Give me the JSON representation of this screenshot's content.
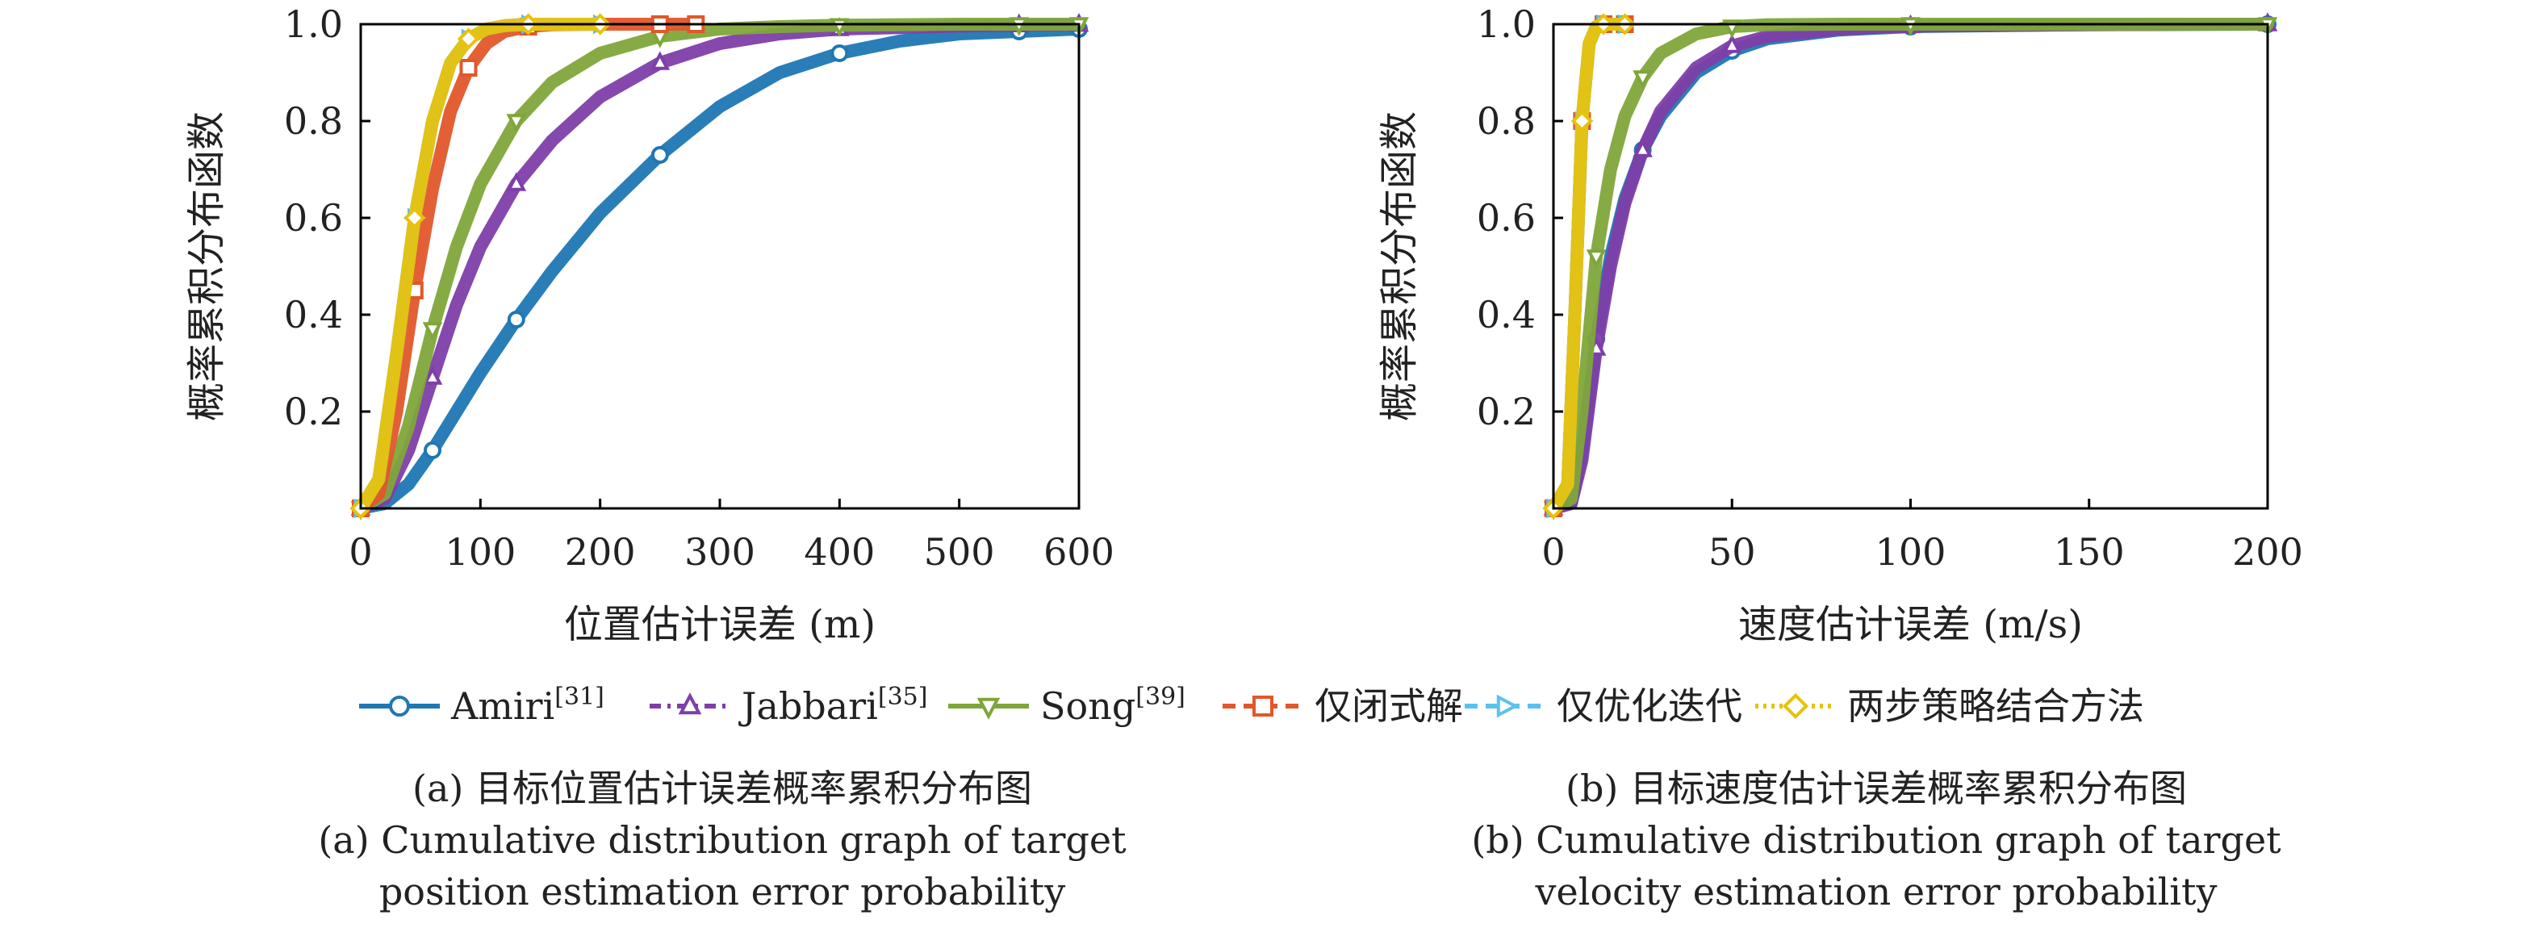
{
  "legend": [
    {
      "name": "Amiri",
      "ref": "[31]",
      "color": "#1f77b4",
      "marker": "circle",
      "dash": ""
    },
    {
      "name": "Jabbari",
      "ref": "[35]",
      "color": "#7e3ea8",
      "marker": "triangle-up",
      "dash": "14,8,4,8"
    },
    {
      "name": "Song",
      "ref": "[39]",
      "color": "#7fa63a",
      "marker": "triangle-down",
      "dash": ""
    },
    {
      "name": "仅闭式解",
      "ref": "",
      "color": "#e2572b",
      "marker": "square",
      "dash": "16,10"
    },
    {
      "name": "仅优化迭代",
      "ref": "",
      "color": "#5bc2ee",
      "marker": "triangle-right",
      "dash": "16,10"
    },
    {
      "name": "两步策略结合方法",
      "ref": "",
      "color": "#e8c20a",
      "marker": "diamond",
      "dash": "4,6"
    }
  ],
  "captions": [
    {
      "zh": "(a) 目标位置估计误差概率累积分布图",
      "en1": "(a) Cumulative distribution graph of target",
      "en2": "position estimation error probability"
    },
    {
      "zh": "(b) 目标速度估计误差概率累积分布图",
      "en1": "(b) Cumulative distribution graph of target",
      "en2": "velocity estimation error probability"
    }
  ],
  "chart_data": [
    {
      "type": "line",
      "xlabel": "位置估计误差 (m)",
      "ylabel": "概率累积分布函数",
      "xlim": [
        0,
        600
      ],
      "ylim": [
        0,
        1.0
      ],
      "xticks": [
        0,
        100,
        200,
        300,
        400,
        500,
        600
      ],
      "yticks": [
        0.2,
        0.4,
        0.6,
        0.8,
        1.0
      ],
      "ytick_labels": [
        "0.2",
        "0.4",
        "0.6",
        "0.8",
        "1.0"
      ],
      "series": [
        {
          "name": "Amiri",
          "x": [
            0,
            20,
            40,
            60,
            80,
            100,
            130,
            160,
            200,
            250,
            300,
            350,
            400,
            450,
            500,
            550,
            600
          ],
          "y": [
            0,
            0.01,
            0.05,
            0.12,
            0.2,
            0.28,
            0.39,
            0.49,
            0.61,
            0.73,
            0.83,
            0.9,
            0.94,
            0.965,
            0.98,
            0.985,
            0.99
          ]
        },
        {
          "name": "Jabbari",
          "x": [
            0,
            20,
            40,
            60,
            80,
            100,
            130,
            160,
            200,
            250,
            300,
            350,
            400,
            450,
            500,
            550,
            600
          ],
          "y": [
            0,
            0.02,
            0.12,
            0.27,
            0.42,
            0.54,
            0.67,
            0.76,
            0.85,
            0.92,
            0.96,
            0.98,
            0.99,
            0.993,
            0.996,
            0.998,
            0.999
          ]
        },
        {
          "name": "Song",
          "x": [
            0,
            20,
            40,
            60,
            80,
            100,
            130,
            160,
            200,
            250,
            300,
            350,
            400,
            450,
            500,
            550,
            600
          ],
          "y": [
            0,
            0.03,
            0.17,
            0.37,
            0.54,
            0.67,
            0.8,
            0.88,
            0.94,
            0.975,
            0.99,
            0.995,
            0.998,
            0.999,
            1.0,
            1.0,
            1.0
          ]
        },
        {
          "name": "仅闭式解",
          "x": [
            0,
            15,
            30,
            45,
            60,
            75,
            90,
            105,
            120,
            140,
            160,
            200,
            250,
            280
          ],
          "y": [
            0,
            0.03,
            0.2,
            0.45,
            0.66,
            0.82,
            0.91,
            0.96,
            0.985,
            0.995,
            0.999,
            1.0,
            1.0,
            1.0
          ]
        },
        {
          "name": "仅优化迭代",
          "x": [
            0,
            15,
            30,
            45,
            60,
            75,
            90,
            105,
            120,
            140,
            160,
            200
          ],
          "y": [
            0,
            0.06,
            0.32,
            0.6,
            0.8,
            0.92,
            0.97,
            0.99,
            0.997,
            1.0,
            1.0,
            1.0
          ]
        },
        {
          "name": "两步策略结合方法",
          "x": [
            0,
            15,
            30,
            45,
            60,
            75,
            90,
            105,
            120,
            140,
            160,
            200
          ],
          "y": [
            0,
            0.06,
            0.32,
            0.6,
            0.8,
            0.92,
            0.97,
            0.99,
            0.997,
            1.0,
            1.0,
            1.0
          ]
        }
      ]
    },
    {
      "type": "line",
      "xlabel": "速度估计误差 (m/s)",
      "ylabel": "概率累积分布函数",
      "xlim": [
        0,
        200
      ],
      "ylim": [
        0,
        1.0
      ],
      "xticks": [
        0,
        50,
        100,
        150,
        200
      ],
      "yticks": [
        0.2,
        0.4,
        0.6,
        0.8,
        1.0
      ],
      "ytick_labels": [
        "0.2",
        "0.4",
        "0.6",
        "0.8",
        "1.0"
      ],
      "series": [
        {
          "name": "Amiri",
          "x": [
            0,
            5,
            8,
            12,
            16,
            20,
            25,
            30,
            40,
            50,
            60,
            80,
            100,
            150,
            200
          ],
          "y": [
            0,
            0.01,
            0.12,
            0.35,
            0.52,
            0.64,
            0.74,
            0.81,
            0.9,
            0.945,
            0.97,
            0.988,
            0.995,
            0.999,
            1.0
          ]
        },
        {
          "name": "Jabbari",
          "x": [
            0,
            5,
            8,
            12,
            16,
            20,
            25,
            30,
            40,
            50,
            60,
            80,
            100,
            150,
            200
          ],
          "y": [
            0,
            0.01,
            0.1,
            0.33,
            0.5,
            0.63,
            0.74,
            0.82,
            0.91,
            0.955,
            0.975,
            0.99,
            0.996,
            0.999,
            1.0
          ]
        },
        {
          "name": "Song",
          "x": [
            0,
            5,
            8,
            12,
            16,
            20,
            25,
            30,
            40,
            50,
            60,
            80,
            100,
            150,
            200
          ],
          "y": [
            0,
            0.02,
            0.2,
            0.52,
            0.7,
            0.81,
            0.89,
            0.94,
            0.98,
            0.995,
            0.999,
            1.0,
            1.0,
            1.0,
            1.0
          ]
        },
        {
          "name": "仅闭式解",
          "x": [
            0,
            4,
            6,
            8,
            10,
            12,
            14,
            20
          ],
          "y": [
            0,
            0.05,
            0.4,
            0.8,
            0.96,
            0.995,
            1.0,
            1.0
          ]
        },
        {
          "name": "仅优化迭代",
          "x": [
            0,
            4,
            6,
            8,
            10,
            12,
            14,
            20
          ],
          "y": [
            0,
            0.05,
            0.4,
            0.8,
            0.96,
            0.995,
            1.0,
            1.0
          ]
        },
        {
          "name": "两步策略结合方法",
          "x": [
            0,
            4,
            6,
            8,
            10,
            12,
            14,
            20
          ],
          "y": [
            0,
            0.05,
            0.4,
            0.8,
            0.96,
            0.995,
            1.0,
            1.0
          ]
        }
      ]
    }
  ]
}
